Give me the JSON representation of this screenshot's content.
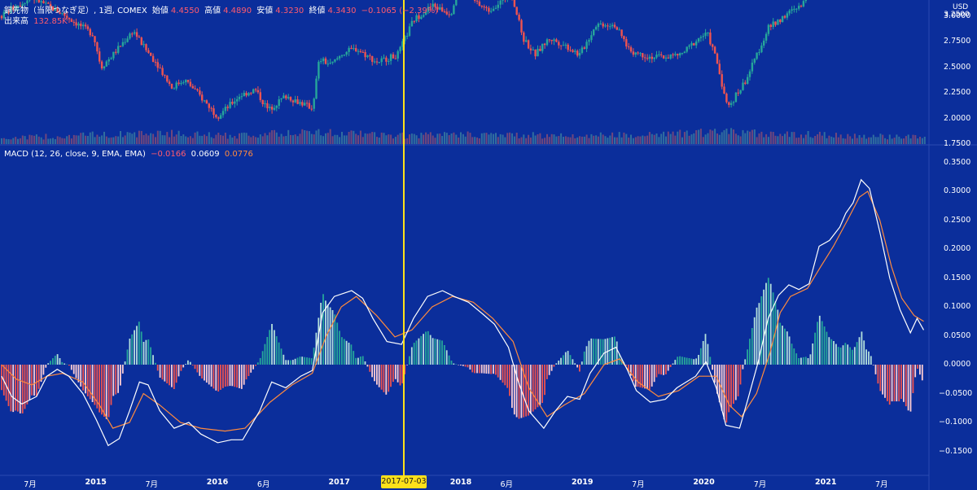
{
  "header": {
    "symbol": "銅先物（当限つなぎ足）, 1週, COMEX",
    "open_label": "始値",
    "open_value": "4.4550",
    "high_label": "高値",
    "high_value": "4.4890",
    "low_label": "安値",
    "low_value": "4.3230",
    "close_label": "終値",
    "close_value": "4.3430",
    "change": "−0.1065 (−2.39%)",
    "volume_label": "出来高",
    "volume_value": "132.85K"
  },
  "macd_header": {
    "label": "MACD (12, 26, close, 9, EMA, EMA)",
    "hist": "−0.0166",
    "macd": "0.0609",
    "signal": "0.0776"
  },
  "price_axis": {
    "unit": "USD",
    "ticks": [
      "3.2500",
      "3.0000",
      "2.7500",
      "2.5000",
      "2.2500",
      "2.0000",
      "1.7500"
    ],
    "last_price": "3.2500"
  },
  "macd_axis": {
    "ticks": [
      "0.3500",
      "0.3000",
      "0.2500",
      "0.2000",
      "0.1500",
      "0.1000",
      "0.0500",
      "0.0000",
      "−0.0500",
      "−0.1000",
      "−0.1500"
    ]
  },
  "time_axis": {
    "ticks": [
      "7月",
      "2015",
      "7月",
      "2016",
      "6月",
      "2017",
      "2018",
      "6月",
      "2019",
      "7月",
      "2020",
      "7月",
      "2021",
      "7月"
    ],
    "crosshair_date": "2017-07-03"
  },
  "colors": {
    "background": "#0b2e9b",
    "up": "#26a69a",
    "down": "#ef5350",
    "macd_line": "#ffffff",
    "signal_line": "#ff8a3d",
    "crosshair": "#ffe11a"
  },
  "chart_data": [
    {
      "type": "candlestick",
      "title": "銅先物（当限つなぎ足）, 1週, COMEX",
      "ylabel": "USD",
      "ylim": [
        1.75,
        3.35
      ],
      "x_range": [
        "2014-04",
        "2021-11"
      ],
      "price_path": [
        [
          "2014-04-01",
          3.0
        ],
        [
          "2014-05-15",
          3.1
        ],
        [
          "2014-07-01",
          3.18
        ],
        [
          "2014-08-15",
          3.1
        ],
        [
          "2014-10-01",
          3.02
        ],
        [
          "2014-11-15",
          2.92
        ],
        [
          "2015-01-01",
          2.82
        ],
        [
          "2015-01-25",
          2.5
        ],
        [
          "2015-03-01",
          2.62
        ],
        [
          "2015-05-01",
          2.86
        ],
        [
          "2015-06-01",
          2.7
        ],
        [
          "2015-07-15",
          2.52
        ],
        [
          "2015-08-25",
          2.3
        ],
        [
          "2015-10-01",
          2.38
        ],
        [
          "2015-11-01",
          2.28
        ],
        [
          "2016-01-10",
          2.02
        ],
        [
          "2016-03-15",
          2.22
        ],
        [
          "2016-05-01",
          2.28
        ],
        [
          "2016-06-10",
          2.08
        ],
        [
          "2016-08-01",
          2.22
        ],
        [
          "2016-10-20",
          2.1
        ],
        [
          "2016-11-10",
          2.58
        ],
        [
          "2016-12-15",
          2.52
        ],
        [
          "2017-01-20",
          2.64
        ],
        [
          "2017-03-01",
          2.68
        ],
        [
          "2017-05-01",
          2.55
        ],
        [
          "2017-07-03",
          2.62
        ],
        [
          "2017-08-20",
          2.96
        ],
        [
          "2017-10-15",
          3.1
        ],
        [
          "2017-12-10",
          3.02
        ],
        [
          "2017-12-31",
          3.28
        ],
        [
          "2018-02-01",
          3.18
        ],
        [
          "2018-04-01",
          3.05
        ],
        [
          "2018-06-10",
          3.22
        ],
        [
          "2018-07-15",
          2.78
        ],
        [
          "2018-08-20",
          2.62
        ],
        [
          "2018-10-01",
          2.78
        ],
        [
          "2018-11-15",
          2.72
        ],
        [
          "2019-01-01",
          2.62
        ],
        [
          "2019-02-20",
          2.92
        ],
        [
          "2019-04-15",
          2.92
        ],
        [
          "2019-06-01",
          2.66
        ],
        [
          "2019-08-01",
          2.6
        ],
        [
          "2019-09-15",
          2.6
        ],
        [
          "2019-11-01",
          2.62
        ],
        [
          "2019-12-31",
          2.8
        ],
        [
          "2020-01-20",
          2.82
        ],
        [
          "2020-02-15",
          2.58
        ],
        [
          "2020-03-20",
          2.1
        ],
        [
          "2020-05-15",
          2.38
        ],
        [
          "2020-07-20",
          2.88
        ],
        [
          "2020-09-15",
          3.02
        ],
        [
          "2020-11-01",
          3.1
        ],
        [
          "2020-12-20",
          3.55
        ]
      ],
      "volume_path": [
        [
          "2014-04-01",
          0.5
        ],
        [
          "2015-01-25",
          0.8
        ],
        [
          "2015-08-25",
          0.9
        ],
        [
          "2016-01-10",
          0.7
        ],
        [
          "2016-11-10",
          1.0
        ],
        [
          "2017-07-03",
          0.7
        ],
        [
          "2018-02-01",
          0.8
        ],
        [
          "2019-01-01",
          0.7
        ],
        [
          "2020-03-20",
          1.0
        ],
        [
          "2020-12-20",
          0.8
        ],
        [
          "2021-05-01",
          0.7
        ],
        [
          "2021-11-01",
          0.6
        ]
      ]
    },
    {
      "type": "line",
      "title": "MACD (12, 26, close, 9, EMA, EMA)",
      "ylim": [
        -0.16,
        0.36
      ],
      "series": [
        {
          "name": "MACD",
          "points": [
            [
              "2014-04-01",
              -0.02
            ],
            [
              "2014-05-01",
              -0.055
            ],
            [
              "2014-06-01",
              -0.068
            ],
            [
              "2014-07-15",
              -0.055
            ],
            [
              "2014-08-15",
              -0.02
            ],
            [
              "2014-09-15",
              -0.008
            ],
            [
              "2014-10-20",
              -0.02
            ],
            [
              "2014-12-01",
              -0.05
            ],
            [
              "2015-01-10",
              -0.095
            ],
            [
              "2015-02-15",
              -0.14
            ],
            [
              "2015-03-20",
              -0.128
            ],
            [
              "2015-04-20",
              -0.08
            ],
            [
              "2015-05-20",
              -0.03
            ],
            [
              "2015-06-15",
              -0.035
            ],
            [
              "2015-07-20",
              -0.08
            ],
            [
              "2015-09-01",
              -0.11
            ],
            [
              "2015-10-15",
              -0.1
            ],
            [
              "2015-11-20",
              -0.12
            ],
            [
              "2016-01-10",
              -0.135
            ],
            [
              "2016-02-20",
              -0.13
            ],
            [
              "2016-03-25",
              -0.13
            ],
            [
              "2016-05-15",
              -0.08
            ],
            [
              "2016-06-20",
              -0.03
            ],
            [
              "2016-08-01",
              -0.04
            ],
            [
              "2016-09-15",
              -0.02
            ],
            [
              "2016-10-20",
              -0.01
            ],
            [
              "2016-11-20",
              0.09
            ],
            [
              "2016-12-25",
              0.118
            ],
            [
              "2017-02-15",
              0.128
            ],
            [
              "2017-03-20",
              0.115
            ],
            [
              "2017-04-20",
              0.08
            ],
            [
              "2017-06-01",
              0.04
            ],
            [
              "2017-07-15",
              0.035
            ],
            [
              "2017-08-20",
              0.08
            ],
            [
              "2017-10-01",
              0.118
            ],
            [
              "2017-11-15",
              0.128
            ],
            [
              "2017-12-20",
              0.118
            ],
            [
              "2018-02-01",
              0.108
            ],
            [
              "2018-03-15",
              0.088
            ],
            [
              "2018-04-20",
              0.07
            ],
            [
              "2018-06-01",
              0.03
            ],
            [
              "2018-07-01",
              -0.03
            ],
            [
              "2018-08-01",
              -0.08
            ],
            [
              "2018-09-15",
              -0.11
            ],
            [
              "2018-10-20",
              -0.08
            ],
            [
              "2018-11-25",
              -0.055
            ],
            [
              "2019-01-01",
              -0.06
            ],
            [
              "2019-02-01",
              -0.015
            ],
            [
              "2019-03-15",
              0.02
            ],
            [
              "2019-04-20",
              0.03
            ],
            [
              "2019-05-25",
              -0.01
            ],
            [
              "2019-06-20",
              -0.045
            ],
            [
              "2019-08-01",
              -0.065
            ],
            [
              "2019-09-15",
              -0.06
            ],
            [
              "2019-10-20",
              -0.04
            ],
            [
              "2019-12-15",
              -0.02
            ],
            [
              "2020-01-15",
              0.005
            ],
            [
              "2020-02-15",
              -0.04
            ],
            [
              "2020-03-15",
              -0.105
            ],
            [
              "2020-04-25",
              -0.11
            ],
            [
              "2020-05-20",
              -0.06
            ],
            [
              "2020-06-20",
              0.005
            ],
            [
              "2020-07-20",
              0.08
            ],
            [
              "2020-08-20",
              0.12
            ],
            [
              "2020-09-20",
              0.138
            ],
            [
              "2020-10-20",
              0.13
            ],
            [
              "2020-11-20",
              0.14
            ],
            [
              "2020-12-20",
              0.205
            ],
            [
              "2021-01-20",
              0.215
            ],
            [
              "2021-02-20",
              0.238
            ],
            [
              "2021-03-10",
              0.262
            ],
            [
              "2021-04-01",
              0.28
            ],
            [
              "2021-04-25",
              0.32
            ],
            [
              "2021-05-20",
              0.305
            ],
            [
              "2021-06-20",
              0.23
            ],
            [
              "2021-07-20",
              0.15
            ],
            [
              "2021-08-20",
              0.095
            ],
            [
              "2021-09-20",
              0.055
            ],
            [
              "2021-10-10",
              0.08
            ],
            [
              "2021-10-30",
              0.06
            ]
          ]
        },
        {
          "name": "Signal",
          "points": [
            [
              "2014-04-01",
              0.0
            ],
            [
              "2014-05-15",
              -0.025
            ],
            [
              "2014-07-01",
              -0.035
            ],
            [
              "2014-08-15",
              -0.02
            ],
            [
              "2014-10-01",
              -0.015
            ],
            [
              "2014-12-01",
              -0.03
            ],
            [
              "2015-01-20",
              -0.07
            ],
            [
              "2015-03-01",
              -0.11
            ],
            [
              "2015-04-20",
              -0.1
            ],
            [
              "2015-06-01",
              -0.05
            ],
            [
              "2015-07-20",
              -0.07
            ],
            [
              "2015-09-20",
              -0.1
            ],
            [
              "2015-11-20",
              -0.11
            ],
            [
              "2016-02-01",
              -0.115
            ],
            [
              "2016-04-01",
              -0.11
            ],
            [
              "2016-06-15",
              -0.065
            ],
            [
              "2016-08-20",
              -0.035
            ],
            [
              "2016-10-20",
              -0.015
            ],
            [
              "2016-12-01",
              0.05
            ],
            [
              "2017-01-15",
              0.1
            ],
            [
              "2017-03-01",
              0.118
            ],
            [
              "2017-05-01",
              0.085
            ],
            [
              "2017-06-25",
              0.048
            ],
            [
              "2017-08-15",
              0.06
            ],
            [
              "2017-10-15",
              0.1
            ],
            [
              "2017-12-15",
              0.118
            ],
            [
              "2018-02-15",
              0.108
            ],
            [
              "2018-04-15",
              0.08
            ],
            [
              "2018-06-15",
              0.04
            ],
            [
              "2018-08-01",
              -0.04
            ],
            [
              "2018-09-25",
              -0.09
            ],
            [
              "2018-11-15",
              -0.07
            ],
            [
              "2019-01-15",
              -0.05
            ],
            [
              "2019-03-15",
              0.0
            ],
            [
              "2019-05-01",
              0.01
            ],
            [
              "2019-06-25",
              -0.03
            ],
            [
              "2019-08-25",
              -0.055
            ],
            [
              "2019-10-25",
              -0.045
            ],
            [
              "2019-12-25",
              -0.02
            ],
            [
              "2020-02-15",
              -0.02
            ],
            [
              "2020-03-25",
              -0.07
            ],
            [
              "2020-05-01",
              -0.09
            ],
            [
              "2020-06-15",
              -0.05
            ],
            [
              "2020-07-25",
              0.02
            ],
            [
              "2020-08-25",
              0.09
            ],
            [
              "2020-09-25",
              0.118
            ],
            [
              "2020-11-15",
              0.132
            ],
            [
              "2020-12-25",
              0.17
            ],
            [
              "2021-02-01",
              0.205
            ],
            [
              "2021-03-15",
              0.25
            ],
            [
              "2021-04-20",
              0.29
            ],
            [
              "2021-05-15",
              0.3
            ],
            [
              "2021-06-20",
              0.25
            ],
            [
              "2021-07-25",
              0.17
            ],
            [
              "2021-08-25",
              0.115
            ],
            [
              "2021-10-01",
              0.085
            ],
            [
              "2021-10-30",
              0.075
            ]
          ]
        }
      ]
    }
  ]
}
